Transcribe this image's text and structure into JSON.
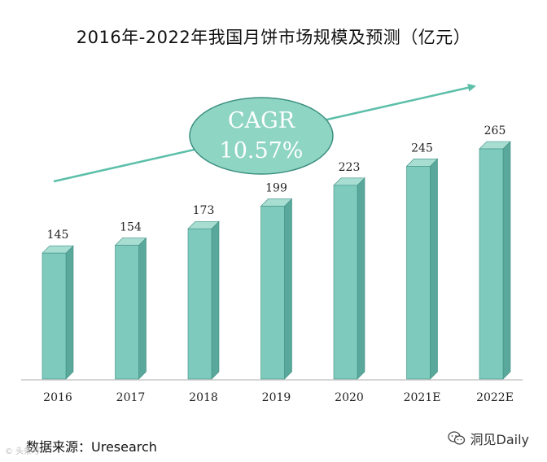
{
  "chart_data": {
    "type": "bar",
    "title": "2016年-2022年我国月饼市场规模及预测（亿元）",
    "categories": [
      "2016",
      "2017",
      "2018",
      "2019",
      "2020",
      "2021E",
      "2022E"
    ],
    "values": [
      145,
      154,
      173,
      199,
      223,
      245,
      265
    ],
    "ylim": [
      0,
      265
    ],
    "xlabel": "",
    "ylabel": "",
    "annotation": {
      "line1": "CAGR",
      "line2": "10.57%"
    },
    "colors": {
      "bar_front": "#7ecbbd",
      "bar_side": "#5aa89b",
      "bar_top": "#a8ddd2",
      "bar_edge": "#3f8f82",
      "accent": "#5bbfa9",
      "ellipse_fill": "#8fd5c4",
      "ellipse_stroke": "#3c8f80"
    }
  },
  "footer": {
    "source": "数据来源：Uresearch",
    "watermark": "洞见Daily",
    "watermark_left": "© 头条号"
  }
}
